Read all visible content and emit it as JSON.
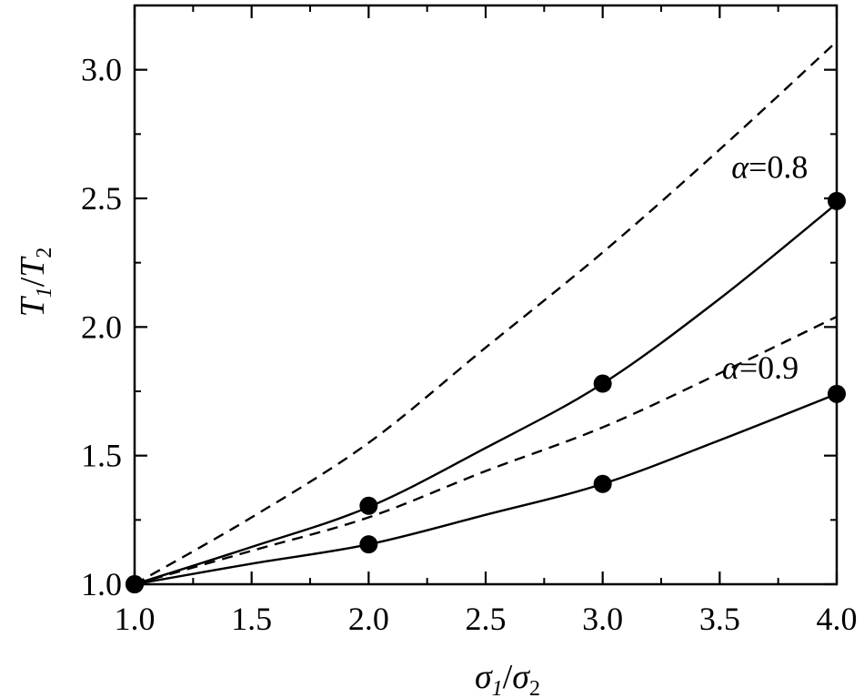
{
  "chart_data": {
    "type": "line",
    "xlabel": {
      "main": "σ",
      "sub1": "1",
      "slash": "/",
      "main2": "σ",
      "sub2": "2"
    },
    "ylabel": {
      "main": "T",
      "sub1": "1",
      "slash": "/",
      "main2": "T",
      "sub2": "2"
    },
    "xlim": [
      1.0,
      4.0
    ],
    "ylim": [
      1.0,
      3.25
    ],
    "x_ticks": [
      1.0,
      1.5,
      2.0,
      2.5,
      3.0,
      3.5,
      4.0
    ],
    "x_tick_labels": [
      "1.0",
      "1.5",
      "2.0",
      "2.5",
      "3.0",
      "3.5",
      "4.0"
    ],
    "y_ticks": [
      1.0,
      1.5,
      2.0,
      2.5,
      3.0
    ],
    "y_tick_labels": [
      "1.0",
      "1.5",
      "2.0",
      "2.5",
      "3.0"
    ],
    "grid": false,
    "series": [
      {
        "style": "solid",
        "group": "α=0.8",
        "x": [
          1.0,
          1.5,
          2.0,
          2.5,
          3.0,
          3.5,
          4.0
        ],
        "y": [
          1.0,
          1.145,
          1.3,
          1.53,
          1.78,
          2.11,
          2.48
        ]
      },
      {
        "style": "dashed",
        "group": "α=0.8",
        "x": [
          1.0,
          1.5,
          2.0,
          2.5,
          3.0,
          3.5,
          4.0
        ],
        "y": [
          1.0,
          1.26,
          1.55,
          1.92,
          2.29,
          2.69,
          3.11
        ]
      },
      {
        "style": "solid",
        "group": "α=0.9",
        "x": [
          1.0,
          1.5,
          2.0,
          2.5,
          3.0,
          3.5,
          4.0
        ],
        "y": [
          1.0,
          1.08,
          1.155,
          1.27,
          1.39,
          1.56,
          1.74
        ]
      },
      {
        "style": "dashed",
        "group": "α=0.9",
        "x": [
          1.0,
          1.5,
          2.0,
          2.5,
          3.0,
          3.5,
          4.0
        ],
        "y": [
          1.0,
          1.13,
          1.26,
          1.44,
          1.61,
          1.82,
          2.04
        ]
      },
      {
        "style": "markers",
        "group": "α=0.8",
        "x": [
          1.0,
          2.0,
          3.0,
          4.0
        ],
        "y": [
          1.0,
          1.305,
          1.78,
          2.49
        ]
      },
      {
        "style": "markers",
        "group": "α=0.9",
        "x": [
          1.0,
          2.0,
          3.0,
          4.0
        ],
        "y": [
          1.0,
          1.155,
          1.39,
          1.74
        ]
      }
    ],
    "annotations": [
      {
        "greek": "α",
        "text": "=0.8",
        "x": 3.55,
        "y": 2.58
      },
      {
        "greek": "α",
        "text": "=0.9",
        "x": 3.51,
        "y": 1.8
      }
    ]
  }
}
